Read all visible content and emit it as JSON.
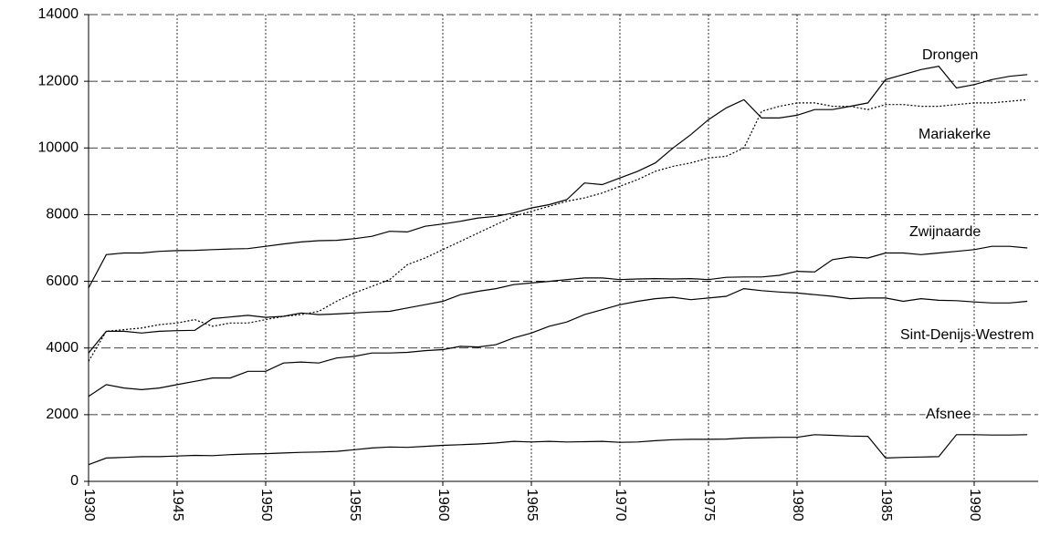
{
  "chart_data": {
    "type": "line",
    "categories": [
      "1930",
      null,
      null,
      null,
      null,
      "1945",
      null,
      null,
      null,
      null,
      "1950",
      null,
      null,
      null,
      null,
      "1955",
      null,
      null,
      null,
      null,
      "1960",
      null,
      null,
      null,
      null,
      "1965",
      null,
      null,
      null,
      null,
      "1970",
      null,
      null,
      null,
      null,
      "1975",
      null,
      null,
      null,
      null,
      "1980",
      null,
      null,
      null,
      null,
      "1985",
      null,
      null,
      null,
      null,
      "1990",
      null,
      null,
      null
    ],
    "ylim": [
      0,
      14000
    ],
    "yticks": [
      0,
      2000,
      4000,
      6000,
      8000,
      10000,
      12000,
      14000
    ],
    "grid": true,
    "series": [
      {
        "name": "Drongen",
        "color": "#000000",
        "line_style": "solid",
        "values": [
          5800,
          6800,
          6850,
          6850,
          6900,
          6920,
          6930,
          6950,
          6970,
          6980,
          7050,
          7120,
          7180,
          7220,
          7230,
          7280,
          7350,
          7500,
          7480,
          7650,
          7720,
          7800,
          7900,
          7950,
          8050,
          8200,
          8300,
          8450,
          8950,
          8900,
          9100,
          9300,
          9550,
          10000,
          10400,
          10850,
          11200,
          11450,
          10900,
          10900,
          10980,
          11150,
          11150,
          11250,
          11350,
          12050,
          12200,
          12350,
          12450,
          11800,
          11900,
          12050,
          12150,
          12200
        ]
      },
      {
        "name": "Mariakerke",
        "color": "#000000",
        "line_style": "dotted",
        "values": [
          3600,
          4500,
          4550,
          4600,
          4700,
          4750,
          4850,
          4650,
          4750,
          4750,
          4850,
          4950,
          5000,
          5100,
          5400,
          5650,
          5850,
          6050,
          6500,
          6700,
          6950,
          7200,
          7450,
          7700,
          7950,
          8100,
          8250,
          8400,
          8500,
          8650,
          8850,
          9050,
          9300,
          9450,
          9550,
          9700,
          9750,
          10000,
          11100,
          11250,
          11350,
          11350,
          11250,
          11250,
          11150,
          11300,
          11300,
          11250,
          11250,
          11300,
          11350,
          11350,
          11400,
          11450
        ]
      },
      {
        "name": "Zwijnaarde",
        "color": "#000000",
        "line_style": "solid",
        "values": [
          3850,
          4500,
          4500,
          4450,
          4500,
          4520,
          4530,
          4880,
          4930,
          4980,
          4920,
          4950,
          5050,
          5000,
          5020,
          5050,
          5080,
          5100,
          5200,
          5300,
          5400,
          5600,
          5700,
          5780,
          5900,
          5950,
          6000,
          6050,
          6100,
          6100,
          6050,
          6070,
          6080,
          6070,
          6080,
          6050,
          6120,
          6130,
          6130,
          6180,
          6300,
          6280,
          6650,
          6730,
          6700,
          6850,
          6850,
          6800,
          6850,
          6900,
          6950,
          7050,
          7050,
          7000
        ]
      },
      {
        "name": "Sint-Denijs-Westrem",
        "color": "#000000",
        "line_style": "solid",
        "values": [
          2550,
          2900,
          2800,
          2750,
          2800,
          2900,
          3000,
          3100,
          3100,
          3300,
          3300,
          3550,
          3580,
          3550,
          3700,
          3750,
          3850,
          3850,
          3870,
          3920,
          3950,
          4050,
          4030,
          4100,
          4300,
          4450,
          4650,
          4780,
          5000,
          5150,
          5300,
          5400,
          5480,
          5520,
          5450,
          5500,
          5550,
          5780,
          5720,
          5680,
          5650,
          5600,
          5550,
          5480,
          5500,
          5500,
          5400,
          5480,
          5430,
          5420,
          5380,
          5350,
          5350,
          5400
        ]
      },
      {
        "name": "Afsnee",
        "color": "#000000",
        "line_style": "solid",
        "values": [
          500,
          700,
          720,
          740,
          740,
          760,
          780,
          770,
          800,
          820,
          830,
          850,
          870,
          880,
          900,
          950,
          1000,
          1030,
          1020,
          1050,
          1080,
          1100,
          1120,
          1150,
          1200,
          1180,
          1200,
          1180,
          1190,
          1200,
          1170,
          1180,
          1220,
          1250,
          1260,
          1260,
          1270,
          1300,
          1310,
          1320,
          1320,
          1400,
          1380,
          1360,
          1350,
          700,
          720,
          730,
          740,
          1400,
          1400,
          1390,
          1390,
          1400
        ]
      }
    ]
  }
}
